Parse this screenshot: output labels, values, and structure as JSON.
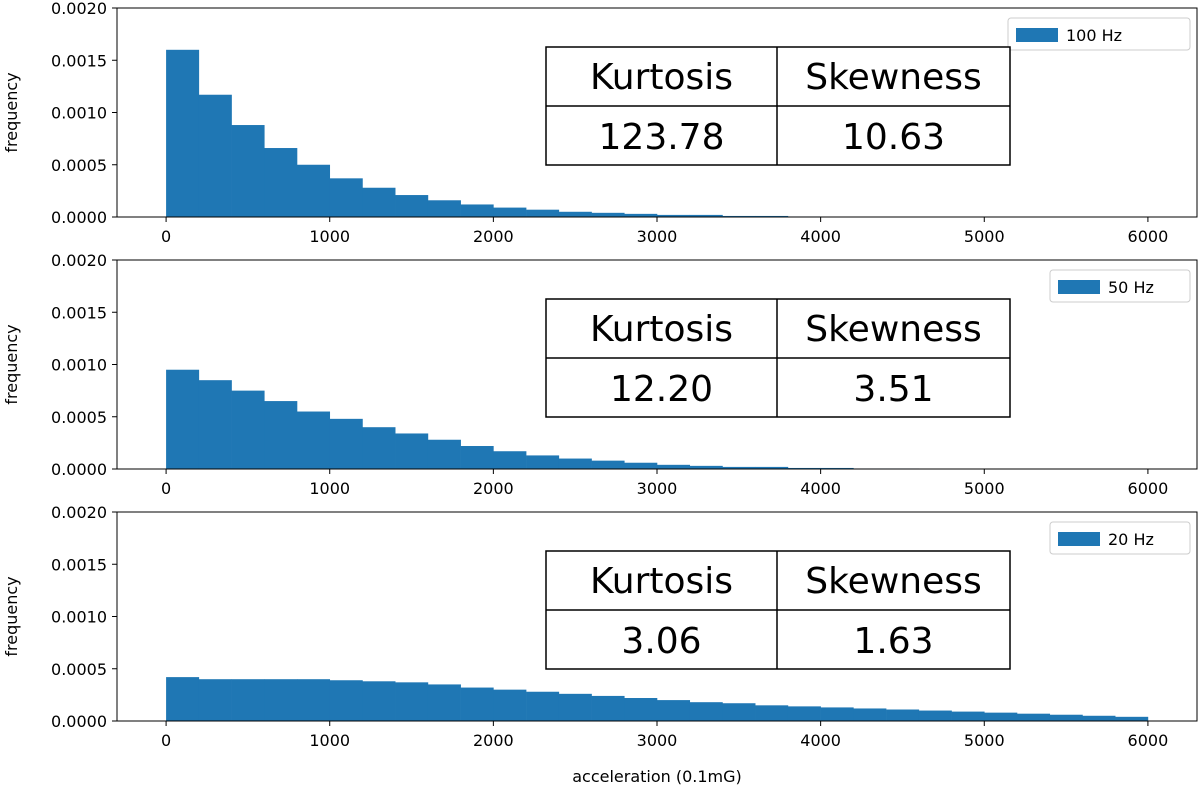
{
  "chart_data": {
    "type": "bar",
    "subtype": "histogram",
    "shared_xlabel": "acceleration (0.1mG)",
    "bin_centers": [
      100,
      300,
      500,
      700,
      900,
      1100,
      1300,
      1500,
      1700,
      1900,
      2100,
      2300,
      2500,
      2700,
      2900,
      3100,
      3300,
      3500,
      3700,
      3900,
      4100,
      4300,
      4500,
      4700,
      4900,
      5100,
      5300,
      5500,
      5700,
      5900
    ],
    "bin_width": 200,
    "xlim": [
      -300,
      6300
    ],
    "ylim": [
      0,
      0.002
    ],
    "xticks": [
      "0",
      "1000",
      "2000",
      "3000",
      "4000",
      "5000",
      "6000"
    ],
    "yticks": [
      "0.0000",
      "0.0005",
      "0.0010",
      "0.0015",
      "0.0020"
    ],
    "color": "#1f77b4",
    "grid": false,
    "legend_placement": "top-right",
    "table_headers": [
      "Kurtosis",
      "Skewness"
    ],
    "panels": [
      {
        "ylabel": "frequency",
        "legend": "100 Hz",
        "kurtosis": "123.78",
        "skewness": "10.63",
        "values": [
          0.0016,
          0.00117,
          0.00088,
          0.00066,
          0.0005,
          0.00037,
          0.00028,
          0.00021,
          0.00016,
          0.00012,
          9e-05,
          7e-05,
          5e-05,
          4e-05,
          3e-05,
          2e-05,
          2e-05,
          1e-05,
          1e-05,
          5e-06,
          3e-06,
          2e-06,
          0,
          0,
          0,
          0,
          0,
          0,
          0,
          0
        ]
      },
      {
        "ylabel": "frequency",
        "legend": "50 Hz",
        "kurtosis": "12.20",
        "skewness": "3.51",
        "values": [
          0.00095,
          0.00085,
          0.00075,
          0.00065,
          0.00055,
          0.00048,
          0.0004,
          0.00034,
          0.00028,
          0.00022,
          0.00017,
          0.00013,
          0.0001,
          8e-05,
          6e-05,
          4e-05,
          3e-05,
          2e-05,
          2e-05,
          1e-05,
          1e-05,
          5e-06,
          5e-06,
          4e-06,
          4e-06,
          4e-06,
          3e-06,
          3e-06,
          3e-06,
          3e-06
        ]
      },
      {
        "ylabel": "frequency",
        "legend": "20 Hz",
        "kurtosis": "3.06",
        "skewness": "1.63",
        "values": [
          0.00042,
          0.0004,
          0.0004,
          0.0004,
          0.0004,
          0.00039,
          0.00038,
          0.00037,
          0.00035,
          0.00032,
          0.0003,
          0.00028,
          0.00026,
          0.00024,
          0.00022,
          0.0002,
          0.00018,
          0.00017,
          0.00015,
          0.00014,
          0.00013,
          0.00012,
          0.00011,
          0.0001,
          9e-05,
          8e-05,
          7e-05,
          6e-05,
          5e-05,
          4e-05
        ]
      }
    ]
  }
}
